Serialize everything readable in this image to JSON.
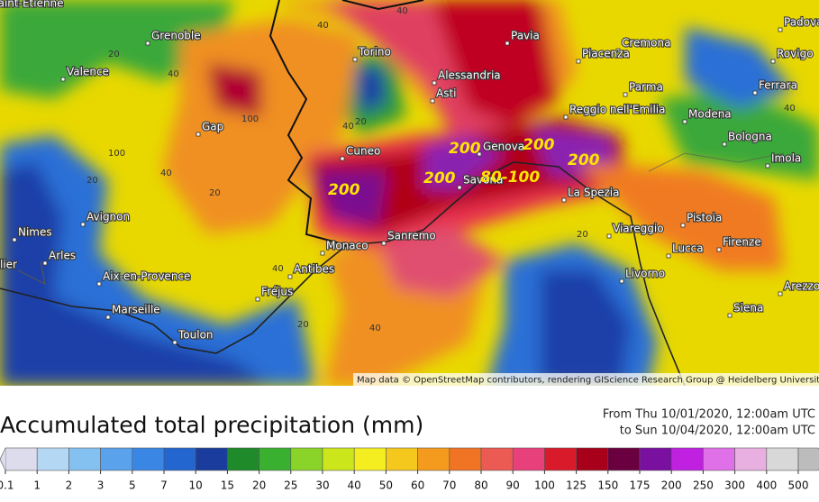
{
  "map": {
    "cities": [
      "Saint-Étienne",
      "Grenoble",
      "Valence",
      "Gap",
      "Torino",
      "Cuneo",
      "Alessandria",
      "Asti",
      "Pavia",
      "Cremona",
      "Piacenza",
      "Parma",
      "Reggio nell'Emilia",
      "Modena",
      "Bologna",
      "Ferrara",
      "Rovigo",
      "Padova",
      "Imola",
      "Genova",
      "Savona",
      "La Spezia",
      "Viareggio",
      "Pistoia",
      "Lucca",
      "Firenze",
      "Livorno",
      "Siena",
      "Arezzo",
      "Nimes",
      "Arles",
      "lier",
      "Avignon",
      "Aix-en-Provence",
      "Marseille",
      "Toulon",
      "Fréjus",
      "Antibes",
      "Monaco",
      "Sanremo"
    ],
    "contour_labels": [
      "40",
      "40",
      "40",
      "20",
      "20",
      "100",
      "40",
      "100",
      "40",
      "20",
      "20",
      "40",
      "20",
      "40",
      "20",
      "40"
    ],
    "annotations": [
      "200",
      "200",
      "200",
      "200",
      "200",
      "80-100"
    ],
    "attribution": "Map data © OpenStreetMap contributors, rendering GIScience Research Group @ Heidelberg University"
  },
  "legend": {
    "title": "Accumulated total precipitation (mm)",
    "period": [
      "From Thu 10/01/2020, 12:00am UTC",
      "to Sun 10/04/2020, 12:00am UTC"
    ],
    "ticks": [
      0.1,
      1,
      2,
      3,
      5,
      7,
      10,
      15,
      20,
      25,
      30,
      40,
      50,
      60,
      70,
      80,
      90,
      100,
      125,
      150,
      175,
      200,
      250,
      300,
      400,
      500
    ],
    "colors": [
      "#dcdcec",
      "#b4d8f4",
      "#84c0f0",
      "#5aa2ec",
      "#3a86e4",
      "#2466d0",
      "#1a3c9c",
      "#1e8a2a",
      "#3ab030",
      "#8ad42a",
      "#cce61c",
      "#f4ee20",
      "#f4c81c",
      "#f49a1c",
      "#f07424",
      "#ec5a54",
      "#e8407a",
      "#d81a2a",
      "#a8001a",
      "#6a0040",
      "#7a10a0",
      "#c020e0",
      "#e070e8",
      "#e8b0e0",
      "#d8d8d8",
      "#bcbcbc"
    ]
  }
}
